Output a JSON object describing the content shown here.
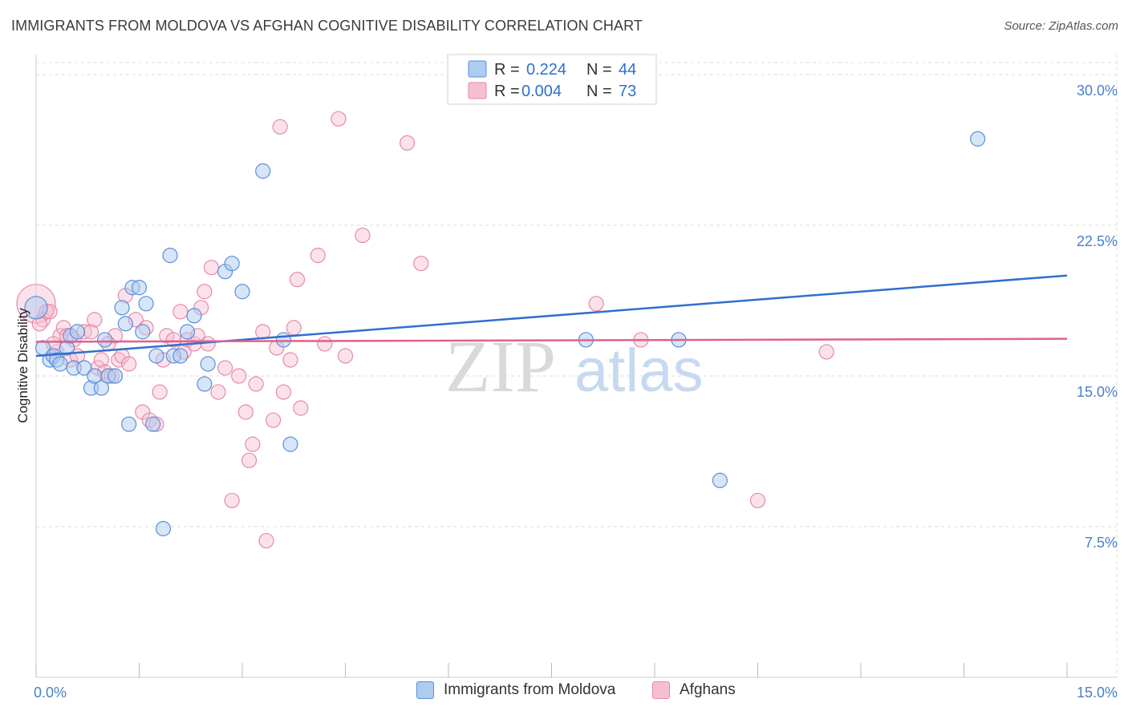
{
  "title": "IMMIGRANTS FROM MOLDOVA VS AFGHAN COGNITIVE DISABILITY CORRELATION CHART",
  "source": "Source: ZipAtlas.com",
  "watermark": {
    "zip": "ZIP",
    "atlas": "atlas"
  },
  "colors": {
    "blue_fill": "#aecbf0",
    "blue_stroke": "#5b8fd8",
    "blue_line": "#2f6fcf",
    "pink_fill": "#f7bed1",
    "pink_stroke": "#e58aab",
    "pink_line": "#e0608e",
    "tick_text": "#4a7fc8",
    "grid": "#dddddd"
  },
  "legend": {
    "rows": [
      {
        "r_label": "R =",
        "r_value": "0.224",
        "n_label": "N =",
        "n_value": "44"
      },
      {
        "r_label": "R =",
        "r_value": "0.004",
        "n_label": "N =",
        "n_value": "73"
      }
    ]
  },
  "bottom_legend": [
    "Immigrants from Moldova",
    "Afghans"
  ],
  "chart_data": {
    "type": "scatter",
    "title": "IMMIGRANTS FROM MOLDOVA VS AFGHAN COGNITIVE DISABILITY CORRELATION CHART",
    "xlabel": "",
    "ylabel": "Cognitive Disability",
    "xlim": [
      0,
      15
    ],
    "ylim": [
      0,
      31
    ],
    "x_tick_labels": [
      "0.0%",
      "15.0%"
    ],
    "y_ticks": [
      7.5,
      15.0,
      22.5,
      30.0
    ],
    "y_tick_labels": [
      "7.5%",
      "15.0%",
      "22.5%",
      "30.0%"
    ],
    "series": [
      {
        "name": "Immigrants from Moldova",
        "r": 0.224,
        "n": 44,
        "trend": {
          "x": [
            0,
            15
          ],
          "y": [
            16.0,
            20.0
          ]
        },
        "points": [
          [
            0.0,
            18.4
          ],
          [
            0.1,
            16.4
          ],
          [
            0.2,
            15.8
          ],
          [
            0.25,
            16.0
          ],
          [
            0.3,
            15.8
          ],
          [
            0.35,
            15.6
          ],
          [
            0.45,
            16.4
          ],
          [
            0.5,
            17.0
          ],
          [
            0.55,
            15.4
          ],
          [
            0.6,
            17.2
          ],
          [
            0.7,
            15.4
          ],
          [
            0.8,
            14.4
          ],
          [
            0.85,
            15.0
          ],
          [
            0.95,
            14.4
          ],
          [
            1.0,
            16.8
          ],
          [
            1.05,
            15.0
          ],
          [
            1.15,
            15.0
          ],
          [
            1.25,
            18.4
          ],
          [
            1.3,
            17.6
          ],
          [
            1.35,
            12.6
          ],
          [
            1.4,
            19.4
          ],
          [
            1.5,
            19.4
          ],
          [
            1.55,
            17.2
          ],
          [
            1.6,
            18.6
          ],
          [
            1.7,
            12.6
          ],
          [
            1.75,
            16.0
          ],
          [
            1.85,
            7.4
          ],
          [
            1.95,
            21.0
          ],
          [
            2.0,
            16.0
          ],
          [
            2.1,
            16.0
          ],
          [
            2.2,
            17.2
          ],
          [
            2.3,
            18.0
          ],
          [
            2.45,
            14.6
          ],
          [
            2.5,
            15.6
          ],
          [
            2.75,
            20.2
          ],
          [
            2.85,
            20.6
          ],
          [
            3.0,
            19.2
          ],
          [
            3.3,
            25.2
          ],
          [
            3.6,
            16.8
          ],
          [
            3.7,
            11.6
          ],
          [
            8.0,
            16.8
          ],
          [
            9.35,
            16.8
          ],
          [
            9.95,
            9.8
          ],
          [
            13.7,
            26.8
          ]
        ]
      },
      {
        "name": "Afghans",
        "r": 0.004,
        "n": 73,
        "trend": {
          "x": [
            0,
            15
          ],
          "y": [
            16.7,
            16.85
          ]
        },
        "points": [
          [
            0.0,
            18.6
          ],
          [
            0.1,
            17.8
          ],
          [
            0.15,
            18.2
          ],
          [
            0.2,
            18.2
          ],
          [
            0.3,
            16.2
          ],
          [
            0.35,
            17.0
          ],
          [
            0.4,
            17.4
          ],
          [
            0.45,
            17.0
          ],
          [
            0.5,
            15.8
          ],
          [
            0.55,
            16.8
          ],
          [
            0.6,
            16.0
          ],
          [
            0.7,
            17.2
          ],
          [
            0.8,
            17.2
          ],
          [
            0.85,
            17.8
          ],
          [
            0.9,
            15.4
          ],
          [
            0.95,
            15.8
          ],
          [
            1.0,
            15.2
          ],
          [
            1.1,
            15.0
          ],
          [
            1.15,
            17.0
          ],
          [
            1.2,
            15.8
          ],
          [
            1.25,
            16.0
          ],
          [
            1.3,
            19.0
          ],
          [
            1.35,
            15.6
          ],
          [
            1.45,
            17.8
          ],
          [
            1.55,
            13.2
          ],
          [
            1.6,
            17.4
          ],
          [
            1.65,
            12.8
          ],
          [
            1.75,
            12.6
          ],
          [
            1.8,
            14.2
          ],
          [
            1.85,
            15.8
          ],
          [
            1.9,
            17.0
          ],
          [
            2.0,
            16.8
          ],
          [
            2.1,
            18.2
          ],
          [
            2.15,
            16.2
          ],
          [
            2.2,
            16.8
          ],
          [
            2.3,
            16.6
          ],
          [
            2.35,
            17.0
          ],
          [
            2.4,
            18.4
          ],
          [
            2.45,
            19.2
          ],
          [
            2.5,
            16.6
          ],
          [
            2.55,
            20.4
          ],
          [
            2.65,
            14.2
          ],
          [
            2.75,
            15.4
          ],
          [
            2.85,
            8.8
          ],
          [
            2.95,
            15.0
          ],
          [
            3.05,
            13.2
          ],
          [
            3.1,
            10.8
          ],
          [
            3.15,
            11.6
          ],
          [
            3.2,
            14.6
          ],
          [
            3.3,
            17.2
          ],
          [
            3.35,
            6.8
          ],
          [
            3.45,
            12.8
          ],
          [
            3.5,
            16.4
          ],
          [
            3.55,
            27.4
          ],
          [
            3.6,
            14.2
          ],
          [
            3.7,
            15.8
          ],
          [
            3.75,
            17.4
          ],
          [
            3.8,
            19.8
          ],
          [
            3.85,
            13.4
          ],
          [
            4.1,
            21.0
          ],
          [
            4.2,
            16.6
          ],
          [
            4.4,
            27.8
          ],
          [
            4.5,
            16.0
          ],
          [
            4.75,
            22.0
          ],
          [
            5.4,
            26.6
          ],
          [
            5.6,
            20.6
          ],
          [
            8.15,
            18.6
          ],
          [
            8.8,
            16.8
          ],
          [
            10.5,
            8.8
          ],
          [
            11.5,
            16.2
          ],
          [
            0.05,
            17.6
          ],
          [
            0.25,
            16.6
          ],
          [
            1.05,
            16.6
          ]
        ]
      }
    ]
  }
}
